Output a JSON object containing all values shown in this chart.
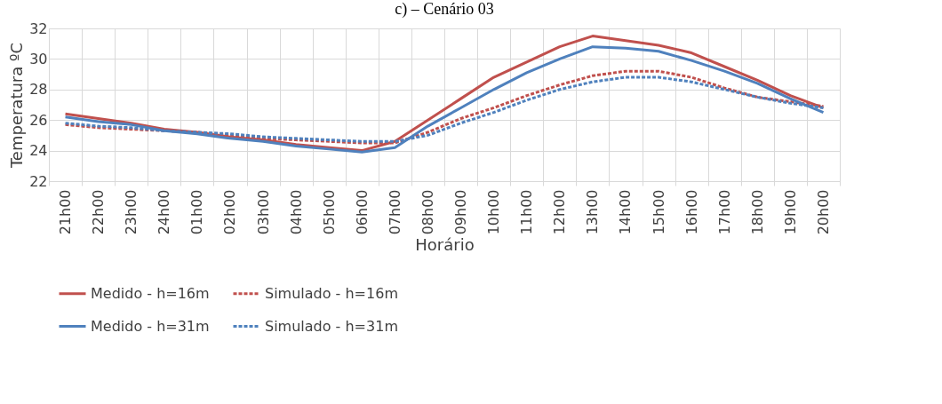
{
  "chart_data": {
    "type": "line",
    "title": "c) – Cenário 03",
    "xlabel": "Horário",
    "ylabel": "Temperatura ºC",
    "categories": [
      "21h00",
      "22h00",
      "23h00",
      "24h00",
      "01h00",
      "02h00",
      "03h00",
      "04h00",
      "05h00",
      "06h00",
      "07h00",
      "08h00",
      "09h00",
      "10h00",
      "11h00",
      "12h00",
      "13h00",
      "14h00",
      "15h00",
      "16h00",
      "17h00",
      "18h00",
      "19h00",
      "20h00"
    ],
    "series": [
      {
        "name": "Medido - h=16m",
        "color": "#c0504d",
        "line_style": "solid",
        "values": [
          26.4,
          26.1,
          25.8,
          25.4,
          25.2,
          24.9,
          24.7,
          24.4,
          24.2,
          24.0,
          24.6,
          26.0,
          27.4,
          28.8,
          29.8,
          30.8,
          31.5,
          31.2,
          30.9,
          30.4,
          29.5,
          28.6,
          27.6,
          26.8
        ]
      },
      {
        "name": "Simulado - h=16m",
        "color": "#c0504d",
        "line_style": "dashed",
        "values": [
          25.7,
          25.5,
          25.4,
          25.3,
          25.2,
          25.0,
          24.8,
          24.7,
          24.6,
          24.5,
          24.5,
          25.2,
          26.1,
          26.8,
          27.6,
          28.3,
          28.9,
          29.2,
          29.2,
          28.8,
          28.1,
          27.5,
          27.2,
          26.9
        ]
      },
      {
        "name": "Medido - h=31m",
        "color": "#4f81bd",
        "line_style": "solid",
        "values": [
          26.2,
          25.9,
          25.7,
          25.3,
          25.1,
          24.8,
          24.6,
          24.3,
          24.1,
          23.9,
          24.2,
          25.6,
          26.8,
          28.0,
          29.1,
          30.0,
          30.8,
          30.7,
          30.5,
          29.9,
          29.2,
          28.4,
          27.4,
          26.5
        ]
      },
      {
        "name": "Simulado - h=31m",
        "color": "#4f81bd",
        "line_style": "dashed",
        "values": [
          25.8,
          25.6,
          25.5,
          25.3,
          25.2,
          25.1,
          24.9,
          24.8,
          24.7,
          24.6,
          24.6,
          25.0,
          25.8,
          26.5,
          27.3,
          28.0,
          28.5,
          28.8,
          28.8,
          28.5,
          28.0,
          27.5,
          27.1,
          26.8
        ]
      }
    ],
    "ylim": [
      22,
      32
    ],
    "yticks": [
      22,
      24,
      26,
      28,
      30,
      32
    ],
    "grid": true,
    "legend": "bottom"
  }
}
